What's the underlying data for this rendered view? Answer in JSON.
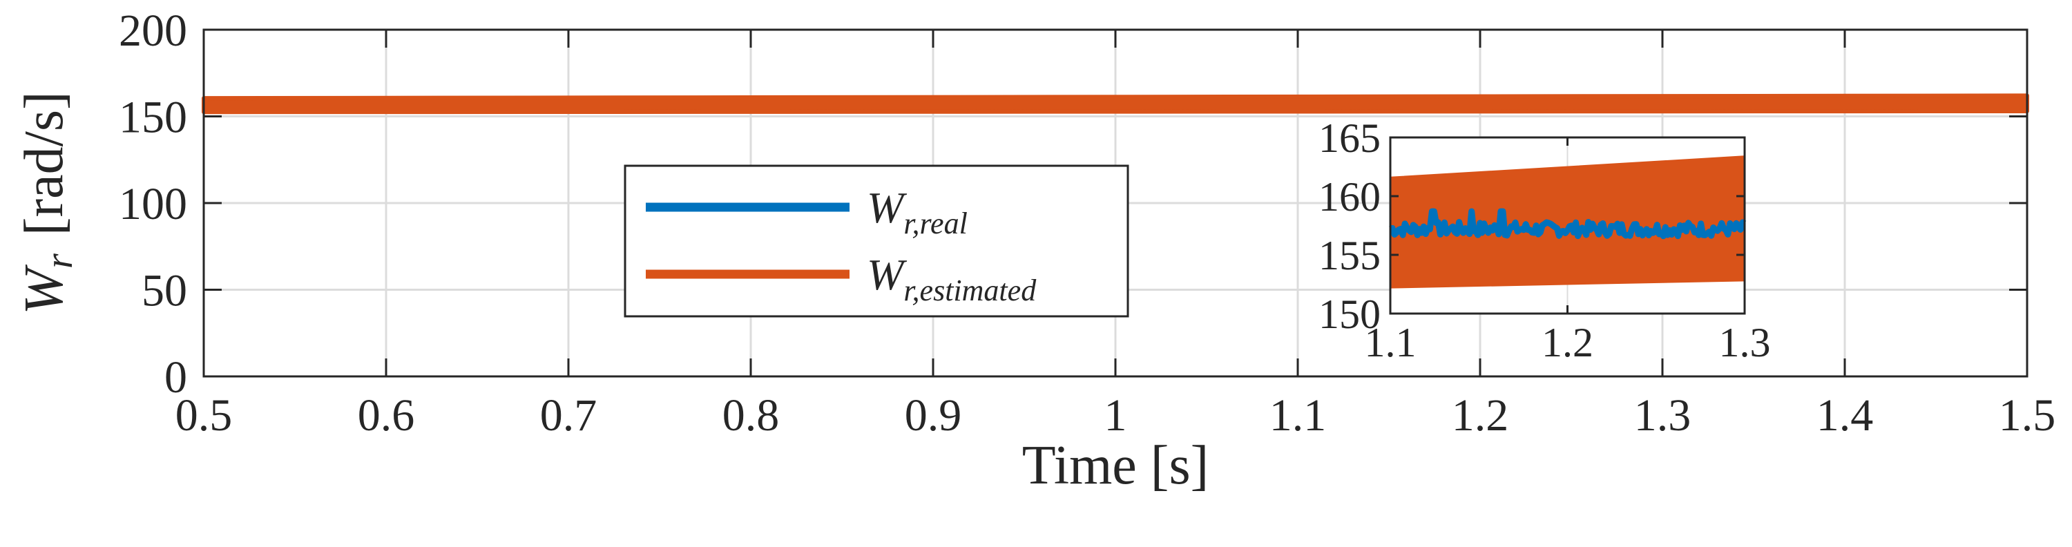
{
  "chart_data": [
    {
      "type": "line",
      "xlabel": "Time [s]",
      "ylabel": {
        "symbol": "W",
        "subscript": "r",
        "units": "[rad/s]"
      },
      "xlim": [
        0.5,
        1.5
      ],
      "ylim": [
        0,
        200
      ],
      "x_ticks": [
        0.5,
        0.6,
        0.7,
        0.8,
        0.9,
        1,
        1.1,
        1.2,
        1.3,
        1.4,
        1.5
      ],
      "x_tick_labels": [
        "0.5",
        "0.6",
        "0.7",
        "0.8",
        "0.9",
        "1",
        "1.1",
        "1.2",
        "1.3",
        "1.4",
        "1.5"
      ],
      "y_ticks": [
        0,
        50,
        100,
        150,
        200
      ],
      "y_tick_labels": [
        "0",
        "50",
        "100",
        "150",
        "200"
      ],
      "grid": true,
      "legend_position": "center-left",
      "series": [
        {
          "name": "W_r,real",
          "legend_symbol": "W",
          "legend_sub": "r,real",
          "color": "#0072bd",
          "x": [
            0.5,
            1.5
          ],
          "y": [
            157,
            157
          ]
        },
        {
          "name": "W_r,estimated",
          "legend_symbol": "W",
          "legend_sub": "r,estimated",
          "color": "#d95319",
          "x": [
            0.5,
            1.5
          ],
          "y_low": [
            152.5,
            153
          ],
          "y_high": [
            160.5,
            162
          ]
        }
      ]
    },
    {
      "type": "line",
      "role": "inset-zoom",
      "xlim": [
        1.1,
        1.3
      ],
      "ylim": [
        150,
        165
      ],
      "x_ticks": [
        1.1,
        1.2,
        1.3
      ],
      "x_tick_labels": [
        "1.1",
        "1.2",
        "1.3"
      ],
      "y_ticks": [
        150,
        155,
        160,
        165
      ],
      "y_tick_labels": [
        "150",
        "155",
        "160",
        "165"
      ],
      "grid": true,
      "series": [
        {
          "name": "W_r,estimated",
          "color": "#d95319",
          "x": [
            1.1,
            1.3
          ],
          "y_low": [
            152.2,
            152.8
          ],
          "y_high": [
            161.6,
            163.4
          ]
        },
        {
          "name": "W_r,real",
          "color": "#0072bd",
          "x": [
            1.1,
            1.3
          ],
          "y": [
            157.2,
            157.2
          ],
          "noise_band": 1.2,
          "spikes": [
            1.124,
            1.146,
            1.163
          ]
        }
      ]
    }
  ]
}
